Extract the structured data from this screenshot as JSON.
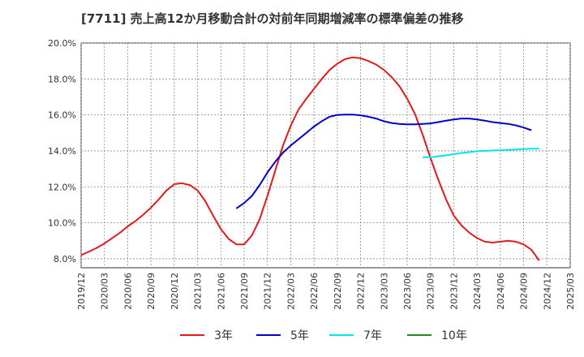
{
  "chart_data": {
    "type": "line",
    "title": "[7711]  売上高12か月移動合計の対前年同期増減率の標準偏差の推移",
    "xlabel": "",
    "ylabel": "",
    "ylim": [
      7.5,
      20.0
    ],
    "y_ticks": [
      "8.0%",
      "10.0%",
      "12.0%",
      "14.0%",
      "16.0%",
      "18.0%",
      "20.0%"
    ],
    "y_tick_values": [
      8,
      10,
      12,
      14,
      16,
      18,
      20
    ],
    "x_ticks": [
      "2019/12",
      "2020/03",
      "2020/06",
      "2020/09",
      "2020/12",
      "2021/03",
      "2021/06",
      "2021/09",
      "2021/12",
      "2022/03",
      "2022/06",
      "2022/09",
      "2022/12",
      "2023/03",
      "2023/06",
      "2023/09",
      "2023/12",
      "2024/03",
      "2024/06",
      "2024/09",
      "2024/12",
      "2025/03"
    ],
    "x_range": [
      "2019/12",
      "2025/03"
    ],
    "grid": true,
    "legend_position": "bottom",
    "series": [
      {
        "name": "3年",
        "color": "#e41a1c",
        "points": [
          [
            "2019/12",
            8.2
          ],
          [
            "2020/01",
            8.4
          ],
          [
            "2020/02",
            8.6
          ],
          [
            "2020/03",
            8.85
          ],
          [
            "2020/04",
            9.15
          ],
          [
            "2020/05",
            9.45
          ],
          [
            "2020/06",
            9.8
          ],
          [
            "2020/07",
            10.1
          ],
          [
            "2020/08",
            10.45
          ],
          [
            "2020/09",
            10.85
          ],
          [
            "2020/10",
            11.3
          ],
          [
            "2020/11",
            11.8
          ],
          [
            "2020/12",
            12.15
          ],
          [
            "2021/01",
            12.2
          ],
          [
            "2021/02",
            12.1
          ],
          [
            "2021/03",
            11.8
          ],
          [
            "2021/04",
            11.2
          ],
          [
            "2021/05",
            10.4
          ],
          [
            "2021/06",
            9.65
          ],
          [
            "2021/07",
            9.1
          ],
          [
            "2021/08",
            8.8
          ],
          [
            "2021/09",
            8.8
          ],
          [
            "2021/10",
            9.3
          ],
          [
            "2021/11",
            10.2
          ],
          [
            "2021/12",
            11.5
          ],
          [
            "2022/01",
            12.9
          ],
          [
            "2022/02",
            14.3
          ],
          [
            "2022/03",
            15.4
          ],
          [
            "2022/04",
            16.3
          ],
          [
            "2022/05",
            16.9
          ],
          [
            "2022/06",
            17.45
          ],
          [
            "2022/07",
            18.0
          ],
          [
            "2022/08",
            18.5
          ],
          [
            "2022/09",
            18.85
          ],
          [
            "2022/10",
            19.1
          ],
          [
            "2022/11",
            19.2
          ],
          [
            "2022/12",
            19.15
          ],
          [
            "2023/01",
            19.0
          ],
          [
            "2023/02",
            18.8
          ],
          [
            "2023/03",
            18.5
          ],
          [
            "2023/04",
            18.1
          ],
          [
            "2023/05",
            17.6
          ],
          [
            "2023/06",
            16.9
          ],
          [
            "2023/07",
            16.05
          ],
          [
            "2023/08",
            14.9
          ],
          [
            "2023/09",
            13.6
          ],
          [
            "2023/10",
            12.4
          ],
          [
            "2023/11",
            11.3
          ],
          [
            "2023/12",
            10.4
          ],
          [
            "2024/01",
            9.85
          ],
          [
            "2024/02",
            9.45
          ],
          [
            "2024/03",
            9.15
          ],
          [
            "2024/04",
            8.95
          ],
          [
            "2024/05",
            8.9
          ],
          [
            "2024/06",
            8.95
          ],
          [
            "2024/07",
            9.0
          ],
          [
            "2024/08",
            8.95
          ],
          [
            "2024/09",
            8.8
          ],
          [
            "2024/10",
            8.5
          ],
          [
            "2024/11",
            7.9
          ]
        ]
      },
      {
        "name": "5年",
        "color": "#0000cc",
        "points": [
          [
            "2021/08",
            10.8
          ],
          [
            "2021/09",
            11.1
          ],
          [
            "2021/10",
            11.5
          ],
          [
            "2021/11",
            12.1
          ],
          [
            "2021/12",
            12.8
          ],
          [
            "2022/01",
            13.4
          ],
          [
            "2022/02",
            13.9
          ],
          [
            "2022/03",
            14.3
          ],
          [
            "2022/04",
            14.65
          ],
          [
            "2022/05",
            15.0
          ],
          [
            "2022/06",
            15.35
          ],
          [
            "2022/07",
            15.65
          ],
          [
            "2022/08",
            15.9
          ],
          [
            "2022/09",
            16.0
          ],
          [
            "2022/10",
            16.02
          ],
          [
            "2022/11",
            16.02
          ],
          [
            "2022/12",
            15.98
          ],
          [
            "2023/01",
            15.9
          ],
          [
            "2023/02",
            15.8
          ],
          [
            "2023/03",
            15.65
          ],
          [
            "2023/04",
            15.55
          ],
          [
            "2023/05",
            15.5
          ],
          [
            "2023/06",
            15.48
          ],
          [
            "2023/07",
            15.48
          ],
          [
            "2023/08",
            15.5
          ],
          [
            "2023/09",
            15.53
          ],
          [
            "2023/10",
            15.6
          ],
          [
            "2023/11",
            15.68
          ],
          [
            "2023/12",
            15.75
          ],
          [
            "2024/01",
            15.8
          ],
          [
            "2024/02",
            15.8
          ],
          [
            "2024/03",
            15.75
          ],
          [
            "2024/04",
            15.68
          ],
          [
            "2024/05",
            15.6
          ],
          [
            "2024/06",
            15.55
          ],
          [
            "2024/07",
            15.5
          ],
          [
            "2024/08",
            15.42
          ],
          [
            "2024/09",
            15.3
          ],
          [
            "2024/10",
            15.15
          ]
        ]
      },
      {
        "name": "7年",
        "color": "#00e5ee",
        "points": [
          [
            "2023/08",
            13.65
          ],
          [
            "2023/09",
            13.65
          ],
          [
            "2023/10",
            13.7
          ],
          [
            "2023/11",
            13.75
          ],
          [
            "2023/12",
            13.82
          ],
          [
            "2024/01",
            13.88
          ],
          [
            "2024/02",
            13.93
          ],
          [
            "2024/03",
            13.98
          ],
          [
            "2024/04",
            14.0
          ],
          [
            "2024/05",
            14.02
          ],
          [
            "2024/06",
            14.04
          ],
          [
            "2024/07",
            14.06
          ],
          [
            "2024/08",
            14.08
          ],
          [
            "2024/09",
            14.1
          ],
          [
            "2024/10",
            14.12
          ],
          [
            "2024/11",
            14.12
          ]
        ]
      },
      {
        "name": "10年",
        "color": "#228b22",
        "points": []
      }
    ]
  }
}
